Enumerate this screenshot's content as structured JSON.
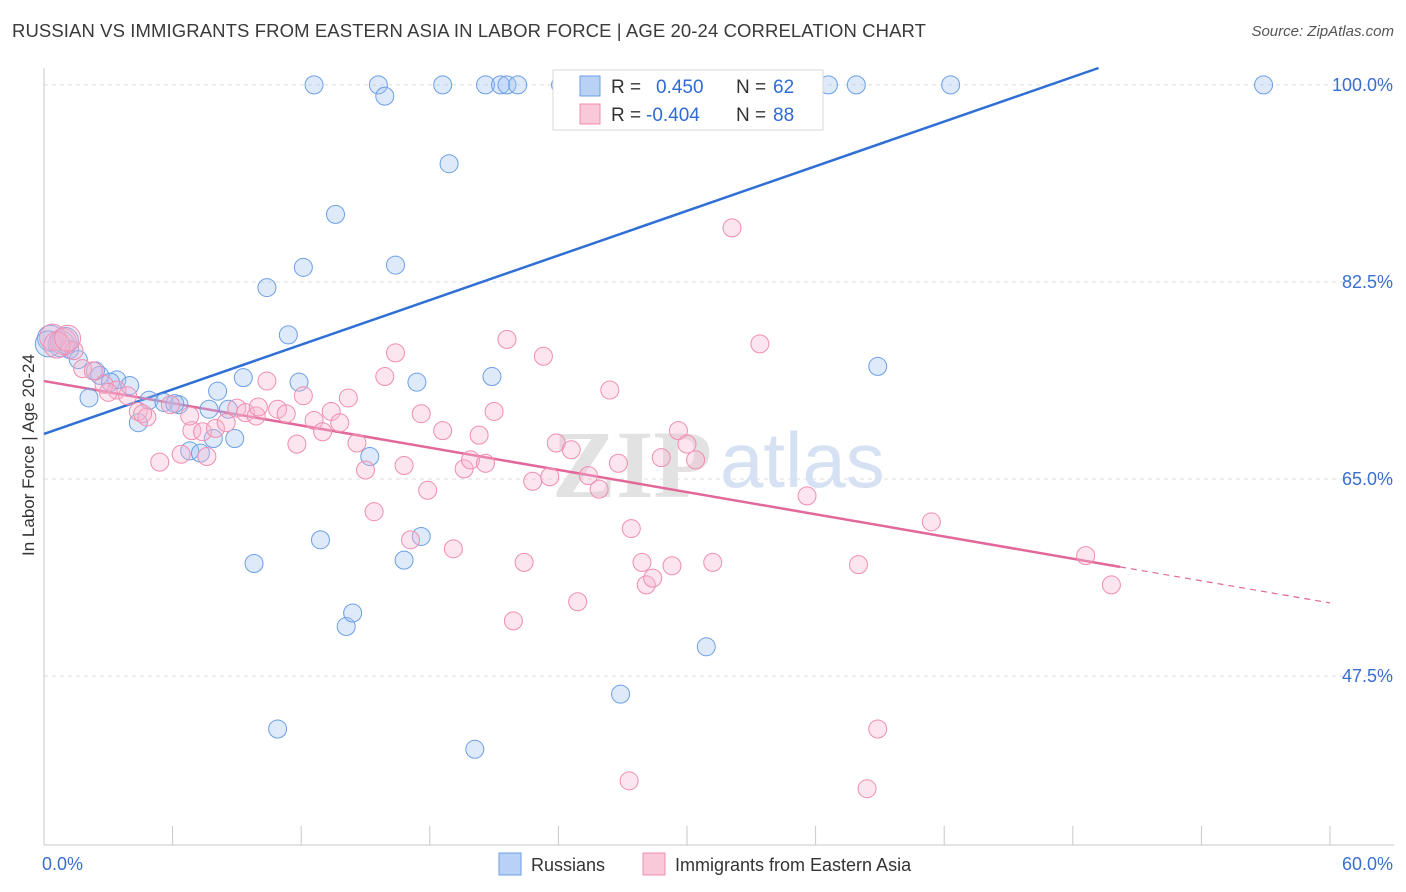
{
  "header": {
    "title": "RUSSIAN VS IMMIGRANTS FROM EASTERN ASIA IN LABOR FORCE | AGE 20-24 CORRELATION CHART",
    "source": "Source: ZipAtlas.com"
  },
  "watermark": {
    "zip": "ZIP",
    "atlas": "atlas"
  },
  "legend": {
    "r_label": "R =",
    "n_label": "N =",
    "series": [
      {
        "name": "Russians",
        "r": "0.450",
        "n": "62",
        "color": "#6b9fe6"
      },
      {
        "name": "Immigrants from Eastern Asia",
        "r": "-0.404",
        "n": "88",
        "color": "#f08db0"
      }
    ]
  },
  "chart_data": {
    "type": "scatter",
    "title": "RUSSIAN VS IMMIGRANTS FROM EASTERN ASIA IN LABOR FORCE | AGE 20-24 CORRELATION CHART",
    "xlabel": "",
    "ylabel": "In Labor Force | Age 20-24",
    "xlim": [
      0,
      60
    ],
    "ylim": [
      32.5,
      101.5
    ],
    "x_tick_labels": [
      "0.0%",
      "60.0%"
    ],
    "y_ticks": [
      47.5,
      65.0,
      82.5,
      100.0
    ],
    "y_tick_labels": [
      "47.5%",
      "65.0%",
      "82.5%",
      "100.0%"
    ],
    "grid": true,
    "legend_position": "top-center",
    "series": [
      {
        "name": "Russians",
        "color": "#6b9fe6",
        "trend": {
          "x": [
            0,
            49.2
          ],
          "y": [
            69.0,
            101.5
          ]
        },
        "points": [
          [
            0.3,
            77.5
          ],
          [
            0.8,
            77.0
          ],
          [
            1.2,
            76.5
          ],
          [
            1.6,
            75.6
          ],
          [
            2.1,
            72.2
          ],
          [
            2.6,
            74.2
          ],
          [
            3.4,
            73.8
          ],
          [
            4.0,
            73.3
          ],
          [
            4.4,
            70.0
          ],
          [
            4.9,
            72.0
          ],
          [
            5.6,
            71.8
          ],
          [
            6.3,
            71.6
          ],
          [
            6.8,
            67.5
          ],
          [
            7.3,
            67.3
          ],
          [
            7.7,
            71.2
          ],
          [
            7.9,
            68.6
          ],
          [
            8.1,
            72.8
          ],
          [
            8.6,
            71.2
          ],
          [
            8.9,
            68.6
          ],
          [
            9.3,
            74.0
          ],
          [
            9.8,
            57.5
          ],
          [
            10.4,
            82.0
          ],
          [
            10.9,
            42.8
          ],
          [
            11.4,
            77.8
          ],
          [
            11.9,
            73.6
          ],
          [
            12.1,
            83.8
          ],
          [
            12.6,
            100.0
          ],
          [
            12.9,
            59.6
          ],
          [
            13.6,
            88.5
          ],
          [
            14.1,
            51.9
          ],
          [
            14.4,
            53.1
          ],
          [
            15.2,
            67.0
          ],
          [
            15.6,
            100.0
          ],
          [
            15.9,
            99.0
          ],
          [
            16.4,
            84.0
          ],
          [
            16.8,
            57.8
          ],
          [
            17.4,
            73.6
          ],
          [
            17.6,
            59.9
          ],
          [
            18.6,
            100.0
          ],
          [
            18.9,
            93.0
          ],
          [
            20.1,
            41.0
          ],
          [
            20.6,
            100.0
          ],
          [
            20.9,
            74.1
          ],
          [
            21.3,
            100.0
          ],
          [
            21.6,
            100.0
          ],
          [
            22.1,
            100.0
          ],
          [
            24.1,
            100.0
          ],
          [
            26.1,
            100.0
          ],
          [
            26.9,
            45.9
          ],
          [
            28.4,
            100.0
          ],
          [
            30.9,
            50.1
          ],
          [
            35.2,
            100.0
          ],
          [
            36.6,
            100.0
          ],
          [
            37.9,
            100.0
          ],
          [
            38.9,
            75.0
          ],
          [
            42.3,
            100.0
          ],
          [
            56.9,
            100.0
          ],
          [
            0.2,
            77.0
          ],
          [
            1.0,
            77.3
          ],
          [
            2.4,
            74.6
          ],
          [
            3.1,
            73.6
          ],
          [
            6.1,
            71.7
          ]
        ]
      },
      {
        "name": "Immigrants from Eastern Asia",
        "color": "#f08db0",
        "trend": {
          "x": [
            0,
            50.2
          ],
          "y": [
            73.7,
            57.2
          ]
        },
        "trend_dashed": {
          "x": [
            50.2,
            60
          ],
          "y": [
            57.2,
            54.0
          ]
        },
        "points": [
          [
            0.4,
            77.6
          ],
          [
            0.9,
            77.2
          ],
          [
            1.4,
            76.4
          ],
          [
            1.8,
            74.8
          ],
          [
            2.3,
            74.6
          ],
          [
            2.8,
            73.4
          ],
          [
            3.4,
            72.9
          ],
          [
            3.9,
            72.4
          ],
          [
            4.4,
            71.0
          ],
          [
            4.8,
            70.5
          ],
          [
            5.4,
            66.5
          ],
          [
            5.9,
            71.6
          ],
          [
            6.4,
            67.2
          ],
          [
            6.9,
            69.3
          ],
          [
            7.4,
            69.2
          ],
          [
            7.6,
            67.0
          ],
          [
            8.0,
            69.5
          ],
          [
            8.5,
            70.0
          ],
          [
            9.0,
            71.3
          ],
          [
            9.4,
            70.9
          ],
          [
            9.9,
            70.6
          ],
          [
            10.4,
            73.7
          ],
          [
            10.9,
            71.2
          ],
          [
            11.3,
            70.8
          ],
          [
            11.8,
            68.1
          ],
          [
            12.1,
            72.4
          ],
          [
            12.6,
            70.2
          ],
          [
            13.0,
            69.2
          ],
          [
            13.4,
            71.0
          ],
          [
            13.8,
            70.0
          ],
          [
            14.2,
            72.2
          ],
          [
            14.6,
            68.2
          ],
          [
            15.0,
            65.8
          ],
          [
            15.4,
            62.1
          ],
          [
            15.9,
            74.1
          ],
          [
            16.4,
            76.2
          ],
          [
            16.8,
            66.2
          ],
          [
            17.1,
            59.6
          ],
          [
            17.6,
            70.8
          ],
          [
            17.9,
            64.0
          ],
          [
            18.6,
            69.3
          ],
          [
            19.1,
            58.8
          ],
          [
            19.6,
            65.9
          ],
          [
            19.9,
            66.7
          ],
          [
            20.3,
            68.9
          ],
          [
            20.6,
            66.4
          ],
          [
            21.0,
            71.0
          ],
          [
            21.6,
            77.4
          ],
          [
            21.9,
            52.4
          ],
          [
            22.4,
            57.6
          ],
          [
            22.8,
            64.8
          ],
          [
            23.3,
            75.9
          ],
          [
            23.6,
            65.2
          ],
          [
            23.9,
            68.2
          ],
          [
            24.6,
            67.6
          ],
          [
            24.9,
            54.1
          ],
          [
            25.4,
            65.3
          ],
          [
            25.9,
            64.1
          ],
          [
            26.4,
            72.9
          ],
          [
            26.8,
            66.4
          ],
          [
            27.4,
            60.6
          ],
          [
            27.9,
            57.6
          ],
          [
            28.1,
            55.6
          ],
          [
            28.4,
            56.2
          ],
          [
            28.8,
            66.9
          ],
          [
            29.3,
            57.3
          ],
          [
            29.6,
            69.3
          ],
          [
            30.0,
            68.1
          ],
          [
            30.4,
            66.7
          ],
          [
            31.2,
            57.6
          ],
          [
            32.1,
            87.3
          ],
          [
            33.4,
            77.0
          ],
          [
            35.6,
            63.5
          ],
          [
            38.0,
            57.4
          ],
          [
            38.9,
            42.8
          ],
          [
            41.4,
            61.2
          ],
          [
            48.6,
            58.2
          ],
          [
            49.8,
            55.6
          ],
          [
            27.3,
            38.2
          ],
          [
            38.4,
            37.5
          ],
          [
            33.0,
            100.0
          ],
          [
            30.6,
            100.0
          ],
          [
            0.6,
            76.9
          ],
          [
            1.1,
            77.5
          ],
          [
            3.0,
            72.7
          ],
          [
            4.6,
            70.8
          ],
          [
            6.8,
            70.6
          ],
          [
            10.0,
            71.4
          ]
        ]
      }
    ]
  }
}
